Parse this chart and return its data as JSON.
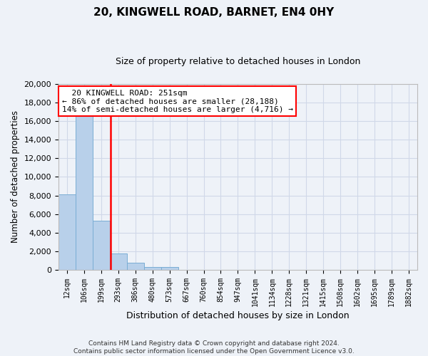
{
  "title": "20, KINGWELL ROAD, BARNET, EN4 0HY",
  "subtitle": "Size of property relative to detached houses in London",
  "xlabel": "Distribution of detached houses by size in London",
  "ylabel": "Number of detached properties",
  "categories": [
    "12sqm",
    "106sqm",
    "199sqm",
    "293sqm",
    "386sqm",
    "480sqm",
    "573sqm",
    "667sqm",
    "760sqm",
    "854sqm",
    "947sqm",
    "1041sqm",
    "1134sqm",
    "1228sqm",
    "1321sqm",
    "1415sqm",
    "1508sqm",
    "1602sqm",
    "1695sqm",
    "1789sqm",
    "1882sqm"
  ],
  "values": [
    8100,
    16600,
    5300,
    1800,
    800,
    300,
    300,
    0,
    0,
    0,
    0,
    0,
    0,
    0,
    0,
    0,
    0,
    0,
    0,
    0,
    0
  ],
  "bar_color": "#b8d0ea",
  "bar_edge_color": "#7aadd4",
  "vline_color": "red",
  "annotation_title": "20 KINGWELL ROAD: 251sqm",
  "annotation_line1": "← 86% of detached houses are smaller (28,188)",
  "annotation_line2": "14% of semi-detached houses are larger (4,716) →",
  "annotation_box_color": "white",
  "annotation_box_edge_color": "red",
  "ylim": [
    0,
    20000
  ],
  "yticks": [
    0,
    2000,
    4000,
    6000,
    8000,
    10000,
    12000,
    14000,
    16000,
    18000,
    20000
  ],
  "grid_color": "#d0d8e8",
  "background_color": "#eef2f8",
  "footer_line1": "Contains HM Land Registry data © Crown copyright and database right 2024.",
  "footer_line2": "Contains public sector information licensed under the Open Government Licence v3.0."
}
